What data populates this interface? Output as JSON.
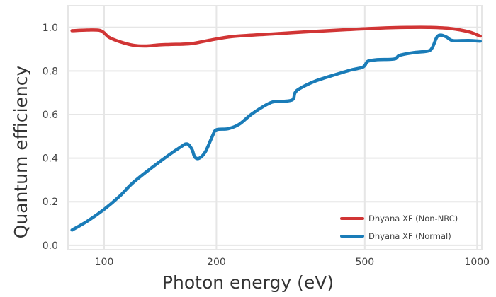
{
  "chart_data": {
    "type": "line",
    "xlabel": "Photon energy (eV)",
    "ylabel": "Quantum efficiency",
    "x_scale": "log",
    "xlim": [
      80,
      1030
    ],
    "ylim": [
      -0.02,
      1.1
    ],
    "x_ticks": [
      {
        "value": 100,
        "label": "100"
      },
      {
        "value": 200,
        "label": "200"
      },
      {
        "value": 500,
        "label": "500"
      },
      {
        "value": 1000,
        "label": "1000"
      }
    ],
    "y_ticks": [
      {
        "value": 0.0,
        "label": "0.0"
      },
      {
        "value": 0.2,
        "label": "0.2"
      },
      {
        "value": 0.4,
        "label": "0.4"
      },
      {
        "value": 0.6,
        "label": "0.6"
      },
      {
        "value": 0.8,
        "label": "0.8"
      },
      {
        "value": 1.0,
        "label": "1.0"
      }
    ],
    "grid": true,
    "legend_position": "bottom-right",
    "series": [
      {
        "name": "Dhyana XF (Non-NRC)",
        "color": "#d13535",
        "points": [
          [
            82,
            0.985
          ],
          [
            90,
            0.988
          ],
          [
            97,
            0.987
          ],
          [
            100,
            0.975
          ],
          [
            103,
            0.955
          ],
          [
            110,
            0.935
          ],
          [
            120,
            0.918
          ],
          [
            130,
            0.915
          ],
          [
            140,
            0.92
          ],
          [
            150,
            0.922
          ],
          [
            170,
            0.925
          ],
          [
            190,
            0.94
          ],
          [
            220,
            0.958
          ],
          [
            270,
            0.968
          ],
          [
            350,
            0.98
          ],
          [
            450,
            0.99
          ],
          [
            550,
            0.997
          ],
          [
            650,
            1.0
          ],
          [
            750,
            1.0
          ],
          [
            850,
            0.995
          ],
          [
            950,
            0.98
          ],
          [
            1020,
            0.96
          ]
        ]
      },
      {
        "name": "Dhyana XF (Normal)",
        "color": "#1a7cb8",
        "points": [
          [
            82,
            0.07
          ],
          [
            90,
            0.11
          ],
          [
            100,
            0.165
          ],
          [
            110,
            0.225
          ],
          [
            120,
            0.29
          ],
          [
            140,
            0.38
          ],
          [
            160,
            0.45
          ],
          [
            167,
            0.465
          ],
          [
            172,
            0.44
          ],
          [
            175,
            0.405
          ],
          [
            180,
            0.4
          ],
          [
            187,
            0.43
          ],
          [
            195,
            0.5
          ],
          [
            200,
            0.53
          ],
          [
            215,
            0.535
          ],
          [
            230,
            0.555
          ],
          [
            250,
            0.605
          ],
          [
            280,
            0.655
          ],
          [
            300,
            0.66
          ],
          [
            320,
            0.668
          ],
          [
            325,
            0.7
          ],
          [
            335,
            0.72
          ],
          [
            370,
            0.755
          ],
          [
            420,
            0.785
          ],
          [
            460,
            0.805
          ],
          [
            490,
            0.815
          ],
          [
            500,
            0.825
          ],
          [
            510,
            0.845
          ],
          [
            540,
            0.852
          ],
          [
            600,
            0.855
          ],
          [
            620,
            0.872
          ],
          [
            680,
            0.885
          ],
          [
            740,
            0.892
          ],
          [
            760,
            0.91
          ],
          [
            780,
            0.955
          ],
          [
            800,
            0.965
          ],
          [
            830,
            0.955
          ],
          [
            860,
            0.94
          ],
          [
            950,
            0.94
          ],
          [
            1020,
            0.937
          ]
        ]
      }
    ]
  }
}
